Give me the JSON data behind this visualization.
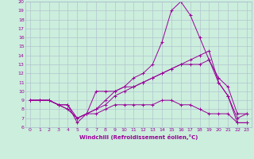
{
  "xlabel": "Windchill (Refroidissement éolien,°C)",
  "ylabel": "",
  "background_color": "#cceedd",
  "grid_color": "#aabbcc",
  "line_color": "#990099",
  "xlim": [
    -0.5,
    23.5
  ],
  "ylim": [
    6,
    20
  ],
  "xticks": [
    0,
    1,
    2,
    3,
    4,
    5,
    6,
    7,
    8,
    9,
    10,
    11,
    12,
    13,
    14,
    15,
    16,
    17,
    18,
    19,
    20,
    21,
    22,
    23
  ],
  "yticks": [
    6,
    7,
    8,
    9,
    10,
    11,
    12,
    13,
    14,
    15,
    16,
    17,
    18,
    19,
    20
  ],
  "series": [
    [
      9.0,
      9.0,
      9.0,
      8.5,
      8.5,
      6.5,
      7.5,
      10.0,
      10.0,
      10.0,
      10.5,
      11.5,
      12.0,
      13.0,
      15.5,
      19.0,
      20.0,
      18.5,
      16.0,
      13.5,
      11.0,
      9.5,
      7.0,
      7.5
    ],
    [
      9.0,
      9.0,
      9.0,
      8.5,
      8.5,
      7.0,
      7.5,
      8.0,
      9.0,
      10.0,
      10.5,
      10.5,
      11.0,
      11.5,
      12.0,
      12.5,
      13.0,
      13.0,
      13.0,
      13.5,
      11.5,
      10.5,
      7.5,
      7.5
    ],
    [
      9.0,
      9.0,
      9.0,
      8.5,
      8.0,
      7.0,
      7.5,
      8.0,
      8.5,
      9.5,
      10.0,
      10.5,
      11.0,
      11.5,
      12.0,
      12.5,
      13.0,
      13.5,
      14.0,
      14.5,
      11.0,
      9.5,
      6.5,
      6.5
    ],
    [
      9.0,
      9.0,
      9.0,
      8.5,
      8.0,
      7.0,
      7.5,
      7.5,
      8.0,
      8.5,
      8.5,
      8.5,
      8.5,
      8.5,
      9.0,
      9.0,
      8.5,
      8.5,
      8.0,
      7.5,
      7.5,
      7.5,
      6.5,
      6.5
    ]
  ]
}
